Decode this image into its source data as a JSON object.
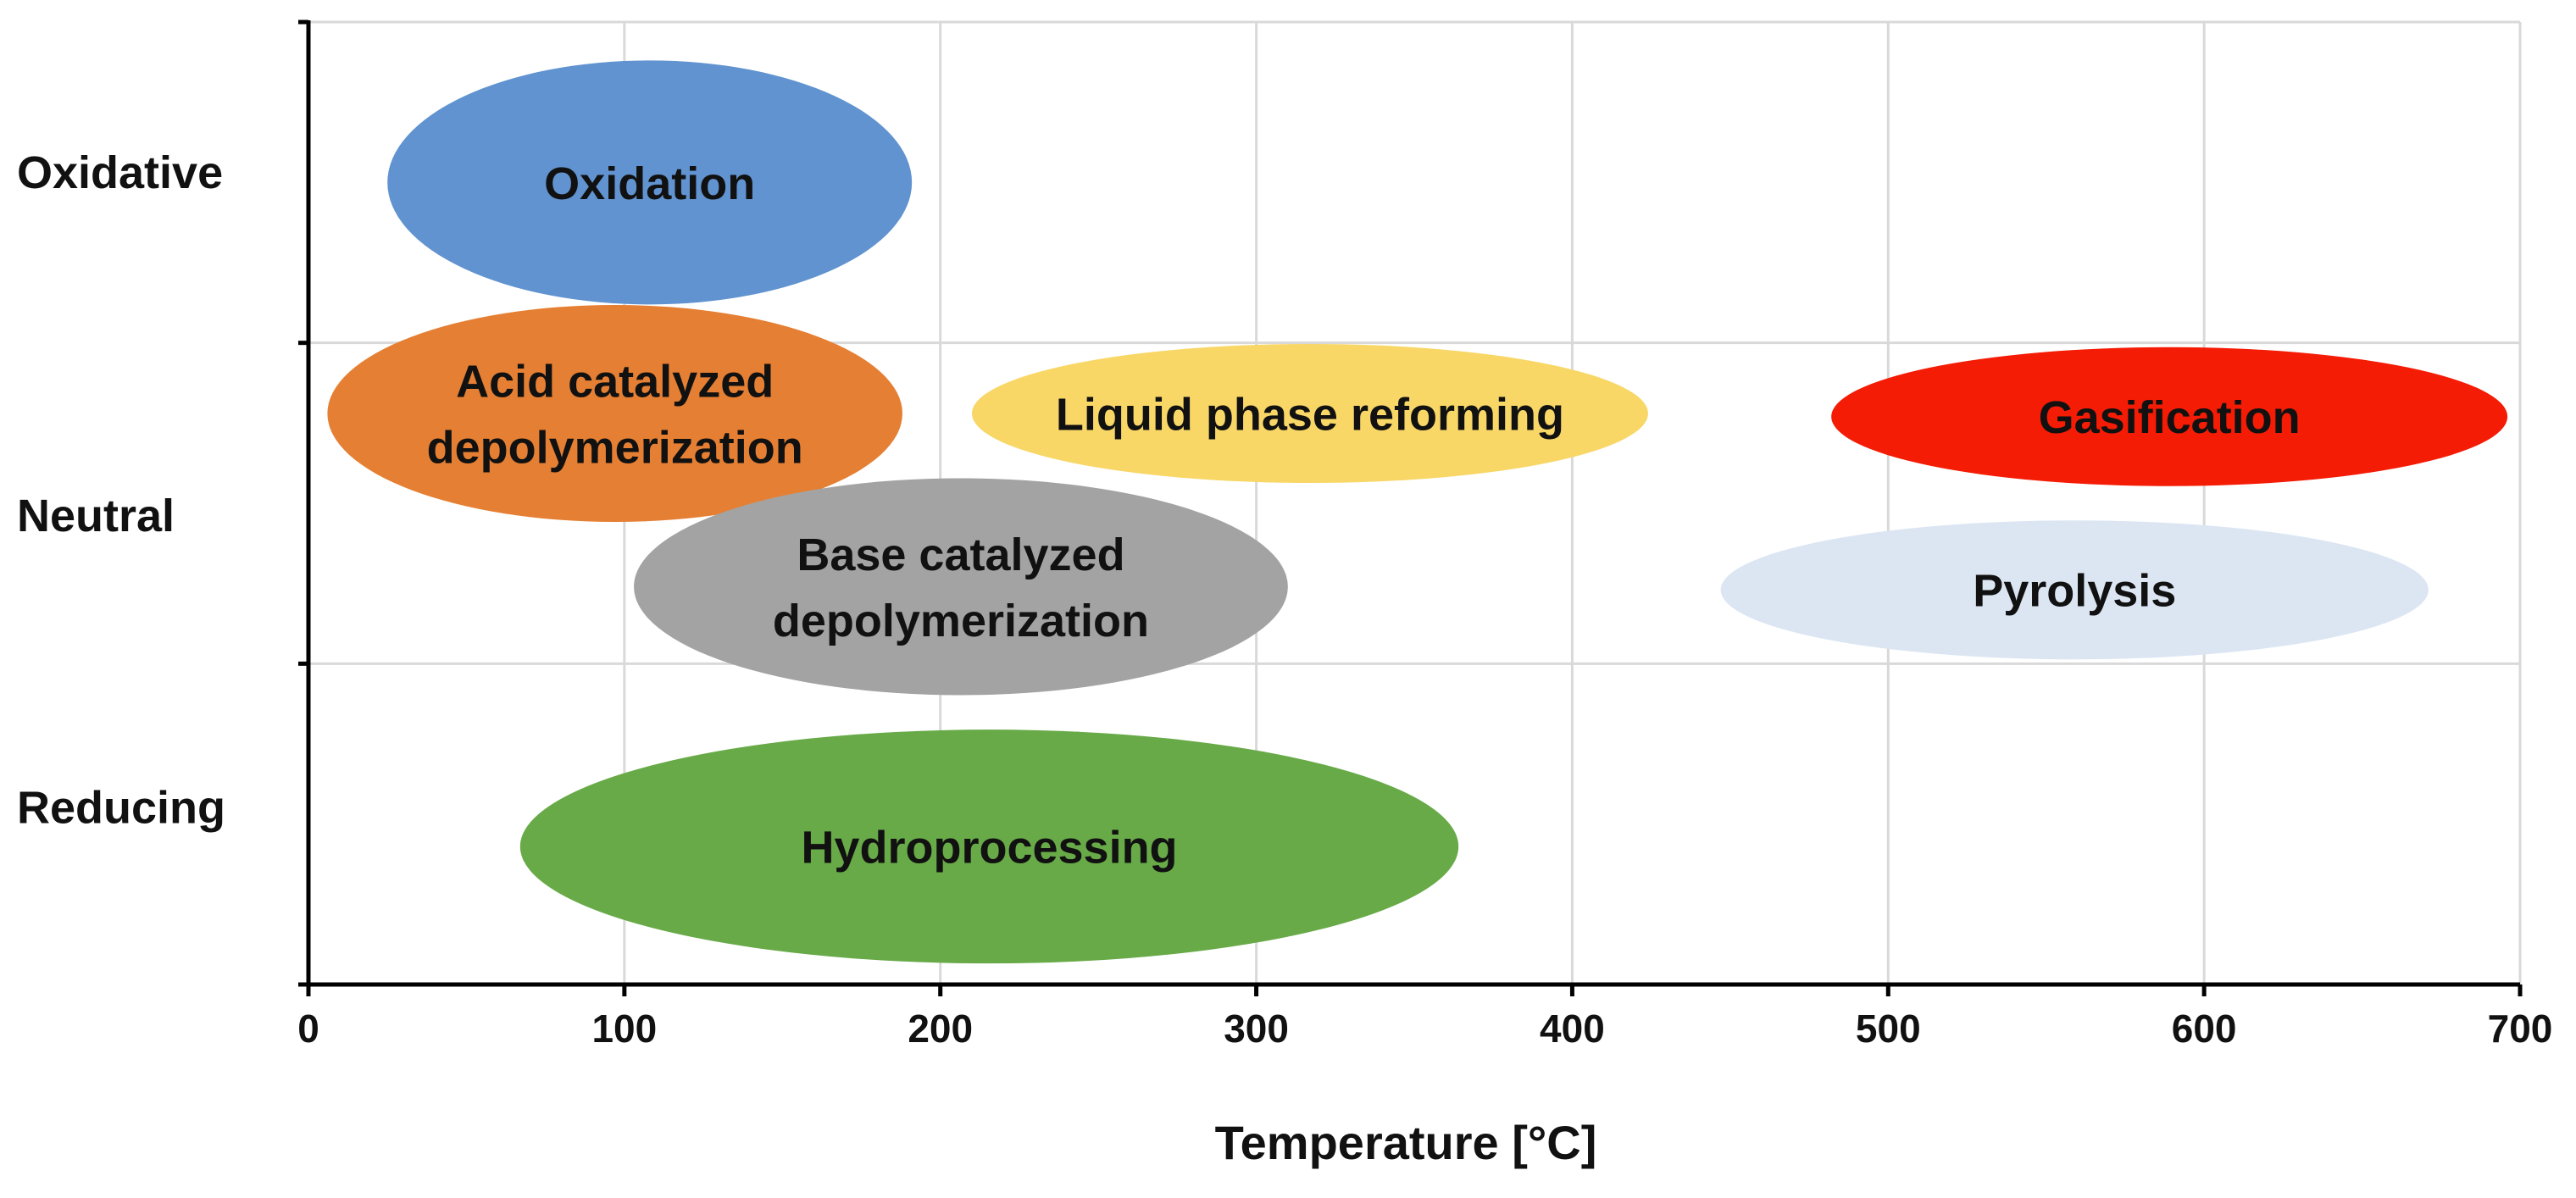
{
  "chart_data": {
    "type": "scatter",
    "title": "",
    "xlabel": "Temperature [°C]",
    "ylabel": "",
    "xlim": [
      0,
      700
    ],
    "xticks": [
      "0",
      "100",
      "200",
      "300",
      "400",
      "500",
      "600",
      "700"
    ],
    "y_categories": [
      "Oxidative",
      "Neutral",
      "Reducing"
    ],
    "grid": true,
    "regions": [
      {
        "label": "Oxidation",
        "lines": [
          "Oxidation"
        ],
        "category": "Oxidative",
        "x_min": 25,
        "x_max": 191,
        "level": 0.5,
        "color": "#6093D0"
      },
      {
        "label": "Acid catalyzed depolymerization",
        "lines": [
          "Acid catalyzed",
          "depolymerization"
        ],
        "category": "Neutral",
        "x_min": 6,
        "x_max": 188,
        "level": 0.22,
        "color": "#E57F33"
      },
      {
        "label": "Liquid phase reforming",
        "lines": [
          "Liquid phase reforming"
        ],
        "category": "Neutral",
        "x_min": 210,
        "x_max": 424,
        "level": 0.22,
        "color": "#F8D767"
      },
      {
        "label": "Gasification",
        "lines": [
          "Gasification"
        ],
        "category": "Neutral",
        "x_min": 482,
        "x_max": 696,
        "level": 0.23,
        "color": "#F41C05"
      },
      {
        "label": "Base catalyzed depolymerization",
        "lines": [
          "Base catalyzed",
          "depolymerization"
        ],
        "category": "Neutral",
        "x_min": 103,
        "x_max": 310,
        "level": 0.76,
        "color": "#A3A3A3"
      },
      {
        "label": "Pyrolysis",
        "lines": [
          "Pyrolysis"
        ],
        "category": "Neutral",
        "x_min": 447,
        "x_max": 671,
        "level": 0.77,
        "color": "#DCE6F3"
      },
      {
        "label": "Hydroprocessing",
        "lines": [
          "Hydroprocessing"
        ],
        "category": "Reducing",
        "x_min": 67,
        "x_max": 364,
        "level": 0.57,
        "color": "#68AA48"
      }
    ],
    "colors": {
      "grid": "#d9d9d9",
      "axis": "#000000",
      "text": "#111111"
    }
  }
}
